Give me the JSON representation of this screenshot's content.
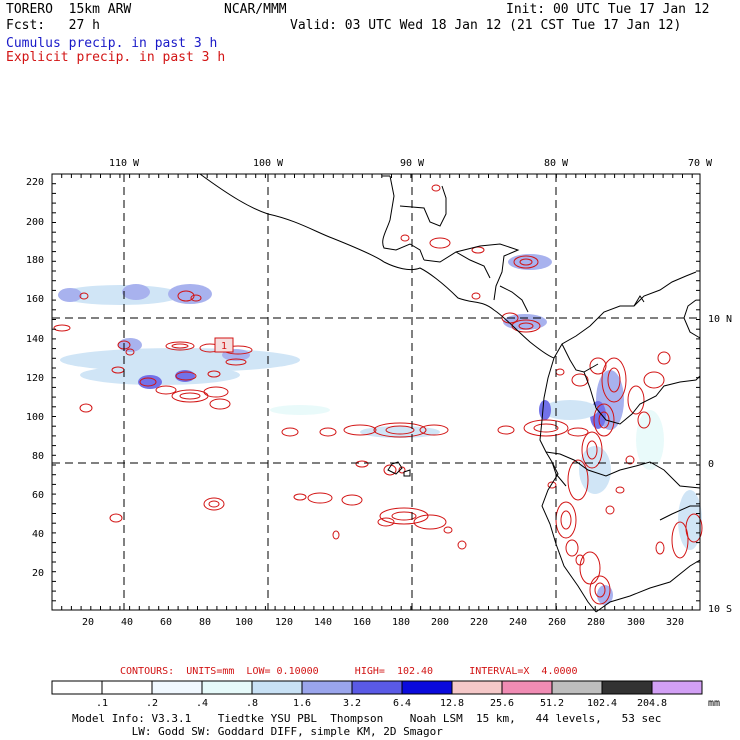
{
  "header": {
    "model": "TORERO  15km ARW",
    "org": "NCAR/MMM",
    "init": "Init: 00 UTC Tue 17 Jan 12",
    "fcst": "Fcst:   27 h",
    "valid": "Valid: 03 UTC Wed 18 Jan 12 (21 CST Tue 17 Jan 12)",
    "field1": "Cumulus precip. in past 3 h",
    "field2": "Explicit precip. in past 3 h"
  },
  "colors": {
    "cumulus": "#1a1ac8",
    "explicit": "#d21414"
  },
  "map": {
    "lon_labels": [
      "110 W",
      "100 W",
      "90 W",
      "80 W",
      "70 W"
    ],
    "lat_labels": [
      "10 N",
      "0",
      "10 S"
    ],
    "y_ticks": [
      "220",
      "200",
      "180",
      "160",
      "140",
      "120",
      "100",
      "80",
      "60",
      "40",
      "20"
    ],
    "x_ticks": [
      "20",
      "40",
      "60",
      "80",
      "100",
      "120",
      "140",
      "160",
      "180",
      "200",
      "220",
      "240",
      "260",
      "280",
      "300",
      "320"
    ],
    "marker": "1"
  },
  "contour_info": "CONTOURS:  UNITS=mm  LOW= 0.10000      HIGH=  102.40      INTERVAL=X  4.0000",
  "legend": {
    "values": [
      ".1",
      ".2",
      ".4",
      ".8",
      "1.6",
      "3.2",
      "6.4",
      "12.8",
      "25.6",
      "51.2",
      "102.4",
      "204.8"
    ],
    "unit": "mm",
    "colors": [
      "#ffffff",
      "#ffffff",
      "#f0f8ff",
      "#e6fafa",
      "#c8e1f5",
      "#9aa5ec",
      "#5a5ae6",
      "#0a0adc",
      "#f5c8c8",
      "#f08cb4",
      "#bebebe",
      "#323232",
      "#d2a0f5"
    ]
  },
  "footer": {
    "line1": "Model Info: V3.3.1    Tiedtke YSU PBL  Thompson    Noah LSM  15 km,   44 levels,   53 sec",
    "line2": "         LW: Godd SW: Goddard DIFF, simple KM, 2D Smagor"
  }
}
